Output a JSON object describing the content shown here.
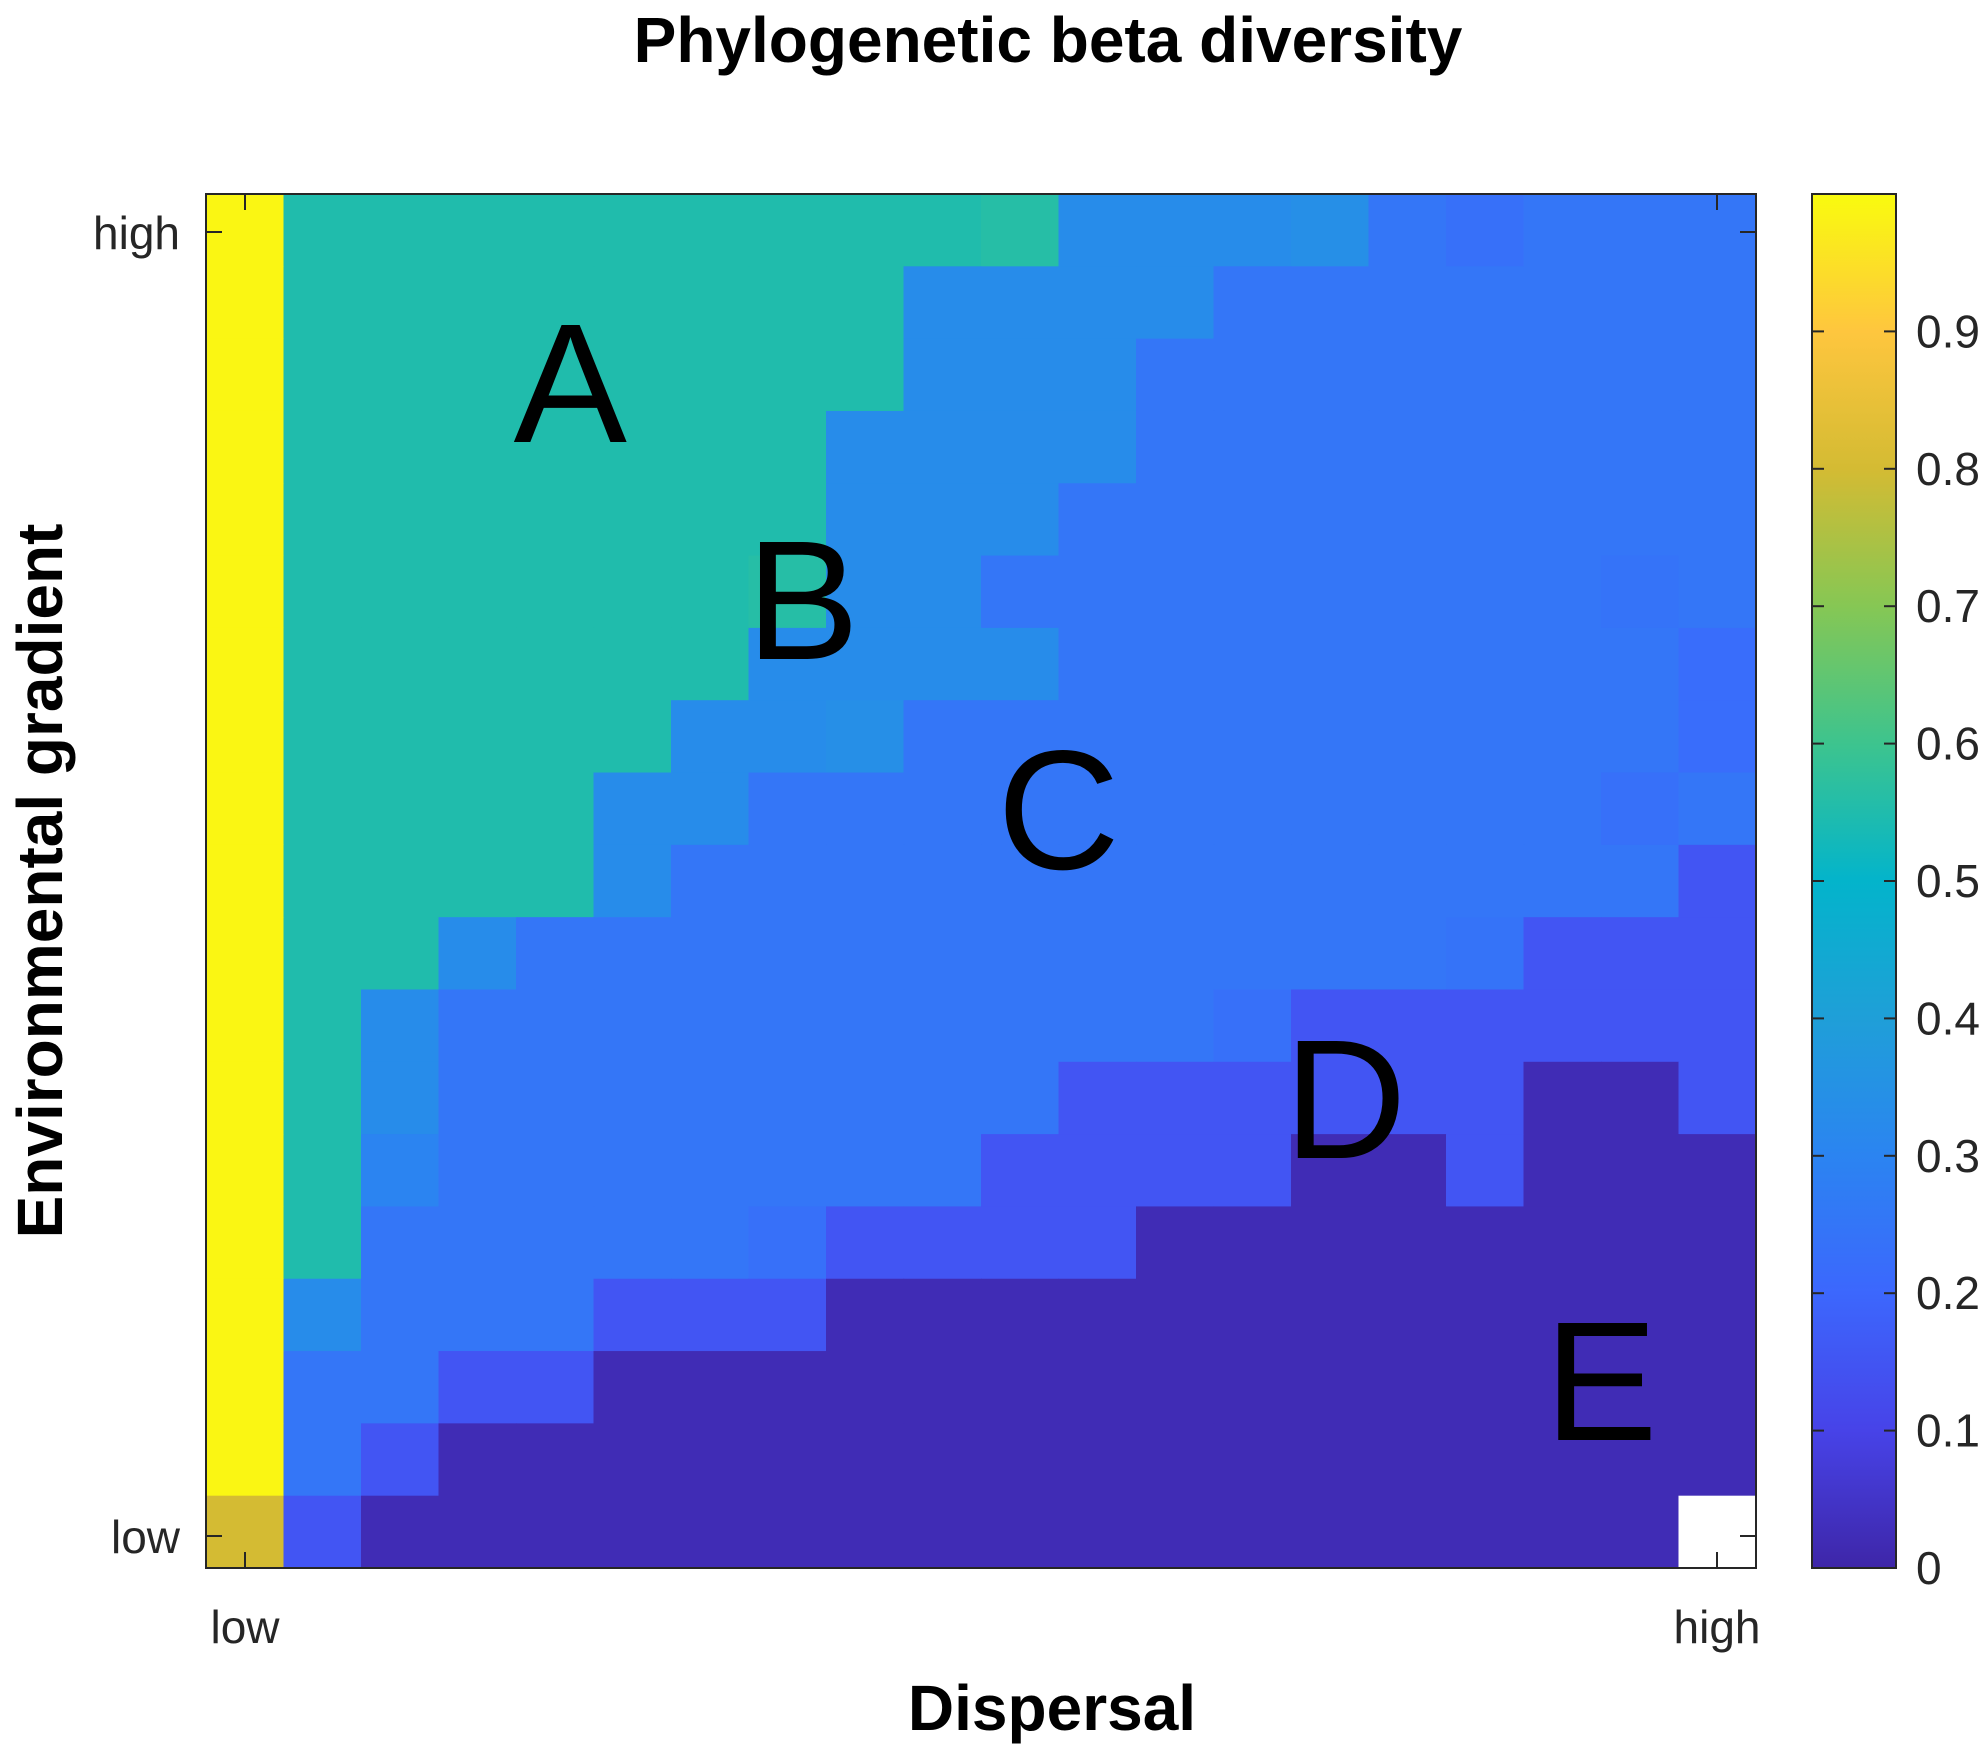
{
  "chart_data": {
    "type": "heatmap",
    "title": "Phylogenetic beta diversity",
    "xlabel": "Dispersal",
    "ylabel": "Environmental gradient",
    "x_ticks": [
      "low",
      "high"
    ],
    "y_ticks": [
      "high",
      "low"
    ],
    "colorbar": {
      "colormap": "parula",
      "range": [
        0,
        1
      ],
      "ticks": [
        "0",
        "0.1",
        "0.2",
        "0.3",
        "0.4",
        "0.5",
        "0.6",
        "0.7",
        "0.8",
        "0.9"
      ]
    },
    "grid": false,
    "rows_order": "top-to-bottom (environmental gradient high to low)",
    "values": [
      [
        0.99,
        0.55,
        0.55,
        0.55,
        0.55,
        0.55,
        0.55,
        0.55,
        0.55,
        0.55,
        0.56,
        0.33,
        0.33,
        0.33,
        0.34,
        0.25,
        0.23,
        0.25,
        0.25,
        0.25
      ],
      [
        0.99,
        0.55,
        0.55,
        0.55,
        0.55,
        0.55,
        0.55,
        0.55,
        0.55,
        0.33,
        0.33,
        0.33,
        0.33,
        0.25,
        0.25,
        0.25,
        0.25,
        0.25,
        0.25,
        0.25
      ],
      [
        0.99,
        0.55,
        0.55,
        0.55,
        0.55,
        0.55,
        0.55,
        0.55,
        0.55,
        0.33,
        0.33,
        0.33,
        0.25,
        0.25,
        0.25,
        0.25,
        0.25,
        0.25,
        0.25,
        0.25
      ],
      [
        0.99,
        0.55,
        0.55,
        0.55,
        0.55,
        0.55,
        0.55,
        0.55,
        0.33,
        0.33,
        0.33,
        0.33,
        0.25,
        0.25,
        0.25,
        0.25,
        0.25,
        0.25,
        0.25,
        0.25
      ],
      [
        0.99,
        0.55,
        0.55,
        0.55,
        0.55,
        0.55,
        0.55,
        0.55,
        0.33,
        0.33,
        0.33,
        0.25,
        0.25,
        0.25,
        0.25,
        0.25,
        0.25,
        0.25,
        0.25,
        0.25
      ],
      [
        0.99,
        0.55,
        0.55,
        0.55,
        0.55,
        0.55,
        0.55,
        0.56,
        0.33,
        0.33,
        0.25,
        0.25,
        0.25,
        0.25,
        0.25,
        0.25,
        0.25,
        0.25,
        0.24,
        0.25
      ],
      [
        0.99,
        0.55,
        0.55,
        0.55,
        0.55,
        0.55,
        0.55,
        0.33,
        0.33,
        0.33,
        0.33,
        0.25,
        0.25,
        0.25,
        0.25,
        0.25,
        0.25,
        0.25,
        0.25,
        0.22
      ],
      [
        0.99,
        0.55,
        0.55,
        0.55,
        0.55,
        0.55,
        0.33,
        0.33,
        0.34,
        0.25,
        0.25,
        0.25,
        0.25,
        0.25,
        0.25,
        0.25,
        0.25,
        0.25,
        0.25,
        0.22
      ],
      [
        0.99,
        0.55,
        0.55,
        0.55,
        0.55,
        0.33,
        0.33,
        0.25,
        0.25,
        0.25,
        0.25,
        0.25,
        0.25,
        0.25,
        0.25,
        0.25,
        0.25,
        0.25,
        0.23,
        0.25
      ],
      [
        0.99,
        0.55,
        0.55,
        0.55,
        0.55,
        0.33,
        0.25,
        0.25,
        0.25,
        0.25,
        0.25,
        0.25,
        0.25,
        0.25,
        0.25,
        0.25,
        0.25,
        0.25,
        0.25,
        0.15
      ],
      [
        0.99,
        0.55,
        0.55,
        0.33,
        0.25,
        0.25,
        0.25,
        0.25,
        0.25,
        0.25,
        0.25,
        0.25,
        0.25,
        0.25,
        0.25,
        0.25,
        0.24,
        0.15,
        0.15,
        0.15
      ],
      [
        0.99,
        0.55,
        0.33,
        0.25,
        0.25,
        0.25,
        0.25,
        0.25,
        0.25,
        0.25,
        0.25,
        0.25,
        0.25,
        0.23,
        0.15,
        0.15,
        0.15,
        0.15,
        0.15,
        0.15
      ],
      [
        0.99,
        0.55,
        0.33,
        0.25,
        0.25,
        0.25,
        0.25,
        0.25,
        0.25,
        0.25,
        0.25,
        0.15,
        0.15,
        0.15,
        0.15,
        0.15,
        0.15,
        0.02,
        0.02,
        0.15
      ],
      [
        0.99,
        0.55,
        0.3,
        0.25,
        0.25,
        0.25,
        0.25,
        0.25,
        0.25,
        0.25,
        0.15,
        0.15,
        0.15,
        0.15,
        0.02,
        0.02,
        0.15,
        0.02,
        0.02,
        0.02
      ],
      [
        0.99,
        0.55,
        0.25,
        0.25,
        0.25,
        0.25,
        0.25,
        0.23,
        0.15,
        0.15,
        0.15,
        0.15,
        0.02,
        0.02,
        0.02,
        0.02,
        0.02,
        0.02,
        0.02,
        0.02
      ],
      [
        0.99,
        0.33,
        0.25,
        0.25,
        0.25,
        0.15,
        0.15,
        0.15,
        0.02,
        0.02,
        0.02,
        0.02,
        0.02,
        0.02,
        0.02,
        0.02,
        0.02,
        0.02,
        0.02,
        0.02
      ],
      [
        0.99,
        0.25,
        0.25,
        0.15,
        0.15,
        0.02,
        0.02,
        0.02,
        0.02,
        0.02,
        0.02,
        0.02,
        0.02,
        0.02,
        0.02,
        0.02,
        0.02,
        0.02,
        0.02,
        0.02
      ],
      [
        0.99,
        0.25,
        0.15,
        0.02,
        0.02,
        0.02,
        0.02,
        0.02,
        0.02,
        0.02,
        0.02,
        0.02,
        0.02,
        0.02,
        0.02,
        0.02,
        0.02,
        0.02,
        0.02,
        0.02
      ],
      [
        0.8,
        0.15,
        0.02,
        0.02,
        0.02,
        0.02,
        0.02,
        0.02,
        0.02,
        0.02,
        0.02,
        0.02,
        0.02,
        0.02,
        0.02,
        0.02,
        0.02,
        0.02,
        0.02,
        null
      ]
    ],
    "annotations": [
      {
        "text": "A",
        "col": 4.7,
        "row": 2.6
      },
      {
        "text": "B",
        "col": 7.7,
        "row": 5.6
      },
      {
        "text": "C",
        "col": 11.0,
        "row": 8.5
      },
      {
        "text": "D",
        "col": 14.7,
        "row": 12.5
      },
      {
        "text": "E",
        "col": 18.0,
        "row": 16.4
      }
    ]
  }
}
